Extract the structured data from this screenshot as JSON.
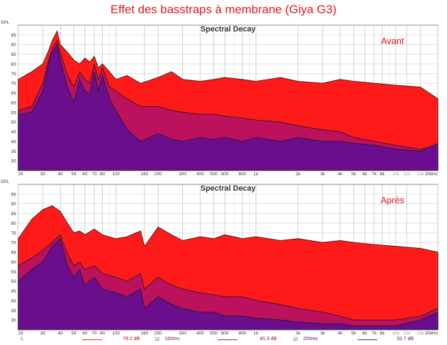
{
  "page": {
    "title": "Effet des basstraps à membrane (Giya G3)"
  },
  "chart_data": [
    {
      "type": "area",
      "title": "Spectral Decay",
      "annotation": "Avant",
      "ylabel": "SPL",
      "yticks": [
        95,
        90,
        85,
        80,
        75,
        70,
        65,
        60,
        55,
        50,
        45,
        40,
        35,
        30
      ],
      "ylim": [
        25,
        100
      ],
      "xscale": "log",
      "xlim": [
        20,
        20000
      ],
      "xticks": [
        {
          "v": 20,
          "label": "20"
        },
        {
          "v": 30,
          "label": "30"
        },
        {
          "v": 40,
          "label": "40"
        },
        {
          "v": 50,
          "label": "50"
        },
        {
          "v": 60,
          "label": "60"
        },
        {
          "v": 70,
          "label": "70"
        },
        {
          "v": 80,
          "label": "80"
        },
        {
          "v": 100,
          "label": "100"
        },
        {
          "v": 160,
          "label": "160"
        },
        {
          "v": 200,
          "label": "200"
        },
        {
          "v": 300,
          "label": "300"
        },
        {
          "v": 400,
          "label": "400"
        },
        {
          "v": 500,
          "label": "500"
        },
        {
          "v": 600,
          "label": "600"
        },
        {
          "v": 800,
          "label": "800"
        },
        {
          "v": 1000,
          "label": "1k"
        },
        {
          "v": 2000,
          "label": "2k"
        },
        {
          "v": 3000,
          "label": "3k"
        },
        {
          "v": 4000,
          "label": "4k"
        },
        {
          "v": 5000,
          "label": "5k"
        },
        {
          "v": 6000,
          "label": "6k"
        },
        {
          "v": 7000,
          "label": "7k"
        },
        {
          "v": 8000,
          "label": "8k"
        },
        {
          "v": 10000,
          "label": "10k"
        },
        {
          "v": 12000,
          "label": "12k"
        },
        {
          "v": 15000,
          "label": "15k"
        },
        {
          "v": 20000,
          "label": "20kHz"
        }
      ],
      "series": [
        {
          "color": "#ff1a1a",
          "x": [
            20,
            25,
            30,
            33,
            35,
            38,
            40,
            45,
            50,
            55,
            60,
            65,
            70,
            75,
            80,
            90,
            100,
            120,
            150,
            200,
            250,
            300,
            400,
            500,
            600,
            800,
            1000,
            1500,
            2000,
            3000,
            4000,
            5000,
            7000,
            10000,
            15000,
            20000
          ],
          "y": [
            72,
            76,
            80,
            87,
            92,
            97,
            90,
            86,
            82,
            80,
            83,
            81,
            84,
            78,
            80,
            76,
            72,
            74,
            70,
            73,
            76,
            72,
            71,
            72,
            73,
            72,
            71,
            73,
            71,
            70,
            72,
            71,
            70,
            69,
            68,
            62
          ]
        },
        {
          "color": "#b0126a",
          "x": [
            20,
            25,
            30,
            33,
            35,
            38,
            40,
            45,
            50,
            55,
            60,
            65,
            70,
            75,
            80,
            90,
            100,
            120,
            150,
            200,
            250,
            300,
            400,
            500,
            600,
            800,
            1000,
            1500,
            2000,
            3000,
            4000,
            5000,
            7000,
            10000,
            15000,
            20000
          ],
          "y": [
            56,
            58,
            70,
            82,
            88,
            92,
            86,
            74,
            68,
            76,
            72,
            70,
            80,
            72,
            78,
            68,
            66,
            62,
            58,
            58,
            56,
            55,
            54,
            54,
            53,
            52,
            51,
            50,
            48,
            46,
            45,
            42,
            40,
            38,
            36,
            38
          ]
        },
        {
          "color": "#6a0e8e",
          "x": [
            20,
            25,
            30,
            33,
            35,
            38,
            40,
            45,
            50,
            55,
            60,
            65,
            70,
            75,
            80,
            90,
            100,
            120,
            150,
            200,
            250,
            300,
            400,
            500,
            600,
            800,
            1000,
            1500,
            2000,
            3000,
            4000,
            5000,
            7000,
            10000,
            15000,
            20000
          ],
          "y": [
            54,
            55,
            66,
            80,
            86,
            90,
            82,
            68,
            60,
            72,
            66,
            64,
            76,
            66,
            74,
            62,
            56,
            46,
            40,
            44,
            41,
            40,
            42,
            41,
            42,
            40,
            42,
            40,
            42,
            40,
            40,
            39,
            38,
            36,
            35,
            39
          ]
        }
      ]
    },
    {
      "type": "area",
      "title": "Spectral Decay",
      "annotation": "Après",
      "ylabel": "SPL",
      "yticks": [
        95,
        90,
        85,
        80,
        75,
        70,
        65,
        60,
        55,
        50,
        45,
        40,
        35,
        30
      ],
      "ylim": [
        25,
        100
      ],
      "xscale": "log",
      "xlim": [
        20,
        20000
      ],
      "xticks": [
        {
          "v": 20,
          "label": "20"
        },
        {
          "v": 30,
          "label": "30"
        },
        {
          "v": 40,
          "label": "40"
        },
        {
          "v": 50,
          "label": "50"
        },
        {
          "v": 60,
          "label": "60"
        },
        {
          "v": 70,
          "label": "70"
        },
        {
          "v": 80,
          "label": "80"
        },
        {
          "v": 100,
          "label": "100"
        },
        {
          "v": 160,
          "label": "160"
        },
        {
          "v": 200,
          "label": "200"
        },
        {
          "v": 300,
          "label": "300"
        },
        {
          "v": 400,
          "label": "400"
        },
        {
          "v": 500,
          "label": "500"
        },
        {
          "v": 600,
          "label": "600"
        },
        {
          "v": 800,
          "label": "800"
        },
        {
          "v": 1000,
          "label": "1k"
        },
        {
          "v": 2000,
          "label": "2k"
        },
        {
          "v": 3000,
          "label": "3k"
        },
        {
          "v": 4000,
          "label": "4k"
        },
        {
          "v": 5000,
          "label": "5k"
        },
        {
          "v": 6000,
          "label": "6k"
        },
        {
          "v": 7000,
          "label": "7k"
        },
        {
          "v": 8000,
          "label": "8k"
        },
        {
          "v": 10000,
          "label": "10k"
        },
        {
          "v": 12000,
          "label": "12k"
        },
        {
          "v": 15000,
          "label": "15k"
        },
        {
          "v": 20000,
          "label": "20kHz"
        }
      ],
      "series": [
        {
          "color": "#ff1a1a",
          "x": [
            20,
            25,
            30,
            35,
            40,
            45,
            50,
            55,
            60,
            70,
            80,
            100,
            120,
            150,
            160,
            200,
            250,
            300,
            400,
            500,
            600,
            800,
            1000,
            1500,
            2000,
            3000,
            4000,
            5000,
            7000,
            10000,
            15000,
            20000
          ],
          "y": [
            72,
            82,
            87,
            89,
            86,
            80,
            75,
            76,
            74,
            77,
            74,
            72,
            73,
            76,
            68,
            78,
            74,
            71,
            73,
            72,
            74,
            72,
            73,
            71,
            72,
            70,
            71,
            70,
            69,
            68,
            67,
            65
          ]
        },
        {
          "color": "#b0126a",
          "x": [
            20,
            25,
            30,
            35,
            40,
            45,
            50,
            55,
            60,
            70,
            80,
            100,
            120,
            150,
            160,
            200,
            250,
            300,
            400,
            500,
            600,
            800,
            1000,
            1500,
            2000,
            3000,
            4000,
            5000,
            7000,
            10000,
            15000,
            20000
          ],
          "y": [
            58,
            62,
            66,
            70,
            74,
            64,
            58,
            60,
            56,
            58,
            54,
            52,
            50,
            54,
            46,
            52,
            48,
            46,
            44,
            43,
            42,
            42,
            40,
            38,
            36,
            34,
            32,
            30,
            30,
            30,
            32,
            36
          ]
        },
        {
          "color": "#6a0e8e",
          "x": [
            20,
            25,
            30,
            35,
            40,
            45,
            50,
            55,
            60,
            70,
            80,
            100,
            120,
            150,
            160,
            200,
            250,
            300,
            400,
            500,
            600,
            800,
            1000,
            1500,
            2000,
            3000,
            4000,
            5000,
            7000,
            10000,
            15000,
            20000
          ],
          "y": [
            50,
            56,
            60,
            68,
            72,
            58,
            52,
            56,
            48,
            52,
            46,
            44,
            42,
            46,
            36,
            42,
            38,
            36,
            34,
            34,
            32,
            32,
            31,
            30,
            29,
            28,
            28,
            27,
            27,
            27,
            30,
            34
          ]
        }
      ]
    }
  ],
  "legend": {
    "items": [
      {
        "label": "L",
        "value": "79.2 dB",
        "color": "#ff1a1a"
      },
      {
        "label": "160ms",
        "value": "40.3 dB",
        "color": "#b0126a"
      },
      {
        "label": "200ms",
        "value": "32.7 dB",
        "color": "#6a0e8e"
      }
    ]
  }
}
